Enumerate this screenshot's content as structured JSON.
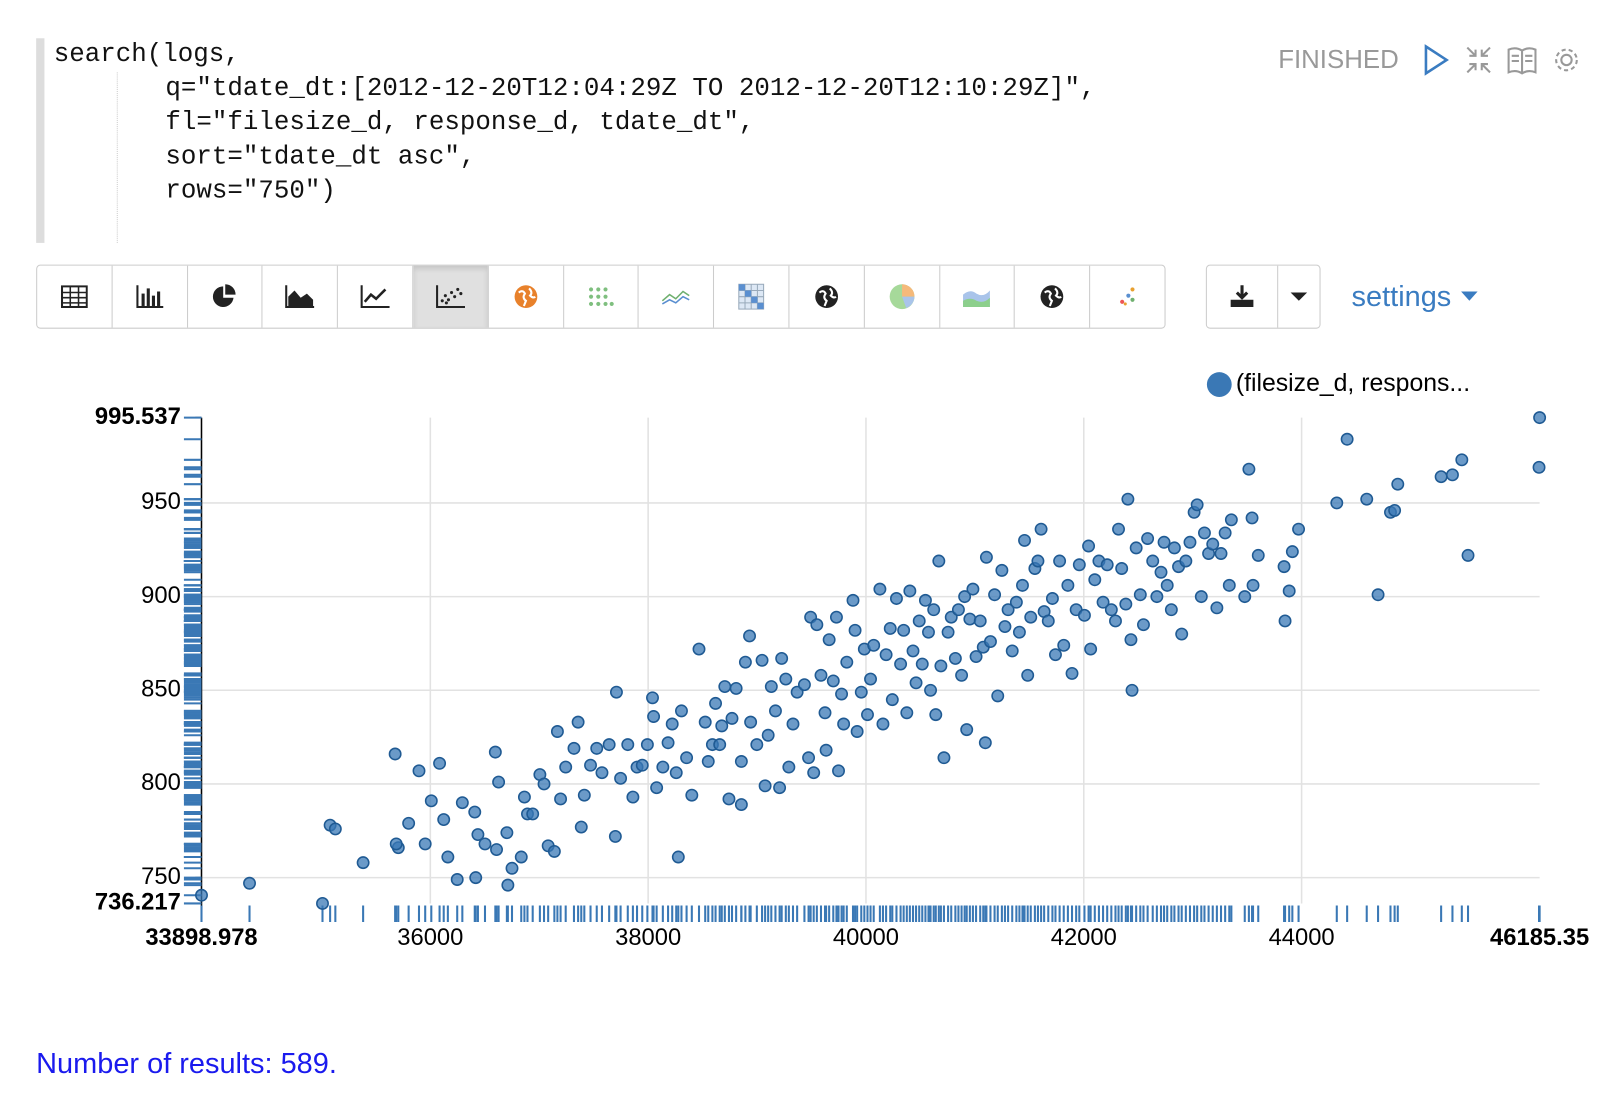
{
  "editor": {
    "lines": [
      "search(logs,",
      "q=\"tdate_dt:[2012-12-20T12:04:29Z TO 2012-12-20T12:10:29Z]\",",
      "fl=\"filesize_d, response_d, tdate_dt\",",
      "sort=\"tdate_dt asc\",",
      "rows=\"750\")"
    ]
  },
  "status": "FINISHED",
  "settings_label": "settings",
  "footer": {
    "results": "Number of results: 589."
  },
  "chart_data": {
    "type": "scatter",
    "xlim": [
      33898.978,
      46185.35
    ],
    "ylim": [
      736.217,
      995.537
    ],
    "xticks": [
      33898.978,
      36000,
      38000,
      40000,
      42000,
      44000,
      46185.35
    ],
    "yticks": [
      736.217,
      750,
      800,
      850,
      900,
      950,
      995.537
    ],
    "grid": true,
    "rug": true,
    "legend": "top-right",
    "series": [
      {
        "name": "(filesize_d, respons...",
        "color": "#3a78b5",
        "x": [
          33898.978,
          34340,
          35010,
          35080,
          35128,
          35383,
          35677,
          35706,
          35687,
          35801,
          35896,
          35953,
          36009,
          36085,
          36123,
          36161,
          36247,
          36294,
          36408,
          36437,
          36417,
          36502,
          36597,
          36627,
          36608,
          36703,
          36712,
          36750,
          36835,
          36864,
          36892,
          36940,
          37006,
          37044,
          37082,
          37139,
          37167,
          37196,
          37243,
          37319,
          37357,
          37386,
          37414,
          37471,
          37528,
          37576,
          37642,
          37699,
          37709,
          37747,
          37813,
          37860,
          37898,
          37946,
          37993,
          38040,
          38050,
          38078,
          38135,
          38183,
          38221,
          38258,
          38277,
          38306,
          38353,
          38401,
          38467,
          38524,
          38552,
          38590,
          38619,
          38657,
          38676,
          38704,
          38742,
          38770,
          38808,
          38856,
          38856,
          38893,
          38931,
          38941,
          38998,
          39046,
          39074,
          39102,
          39131,
          39169,
          39207,
          39226,
          39264,
          39292,
          39330,
          39368,
          39435,
          39473,
          39492,
          39520,
          39549,
          39587,
          39624,
          39634,
          39662,
          39700,
          39729,
          39748,
          39776,
          39795,
          39824,
          39881,
          39900,
          39919,
          39957,
          39985,
          40014,
          40042,
          40071,
          40128,
          40156,
          40185,
          40223,
          40242,
          40280,
          40318,
          40346,
          40375,
          40403,
          40432,
          40460,
          40489,
          40517,
          40546,
          40574,
          40593,
          40622,
          40641,
          40669,
          40688,
          40716,
          40754,
          40783,
          40821,
          40849,
          40878,
          40906,
          40925,
          40954,
          40982,
          41011,
          41049,
          41077,
          41096,
          41106,
          41143,
          41181,
          41210,
          41248,
          41276,
          41305,
          41343,
          41381,
          41409,
          41437,
          41456,
          41485,
          41513,
          41551,
          41579,
          41608,
          41636,
          41674,
          41712,
          41740,
          41778,
          41816,
          41854,
          41892,
          41930,
          41959,
          42006,
          42044,
          42063,
          42101,
          42139,
          42177,
          42215,
          42253,
          42291,
          42319,
          42348,
          42386,
          42405,
          42433,
          42443,
          42481,
          42519,
          42548,
          42586,
          42633,
          42671,
          42709,
          42737,
          42766,
          42804,
          42832,
          42870,
          42899,
          42937,
          42975,
          43013,
          43041,
          43079,
          43108,
          43146,
          43184,
          43222,
          43260,
          43298,
          43336,
          43355,
          43478,
          43516,
          43545,
          43554,
          43602,
          43839,
          43848,
          43886,
          43915,
          43972,
          44323,
          44418,
          44598,
          44702,
          44816,
          44854,
          44883,
          45281,
          45385,
          45471,
          45528,
          46185.35,
          46180
        ],
        "values": [
          740.6,
          747,
          736.217,
          778,
          776,
          758,
          816,
          766,
          768,
          779,
          807,
          768,
          791,
          811,
          781,
          761,
          749,
          790,
          785,
          773,
          750,
          768,
          817,
          801,
          765,
          774,
          746,
          755,
          761,
          793,
          784,
          784,
          805,
          800,
          767,
          764,
          828,
          792,
          809,
          819,
          833,
          777,
          794,
          810,
          819,
          806,
          821,
          772,
          849,
          803,
          821,
          793,
          809,
          810,
          821,
          846,
          836,
          798,
          809,
          822,
          832,
          806,
          761,
          839,
          814,
          794,
          872,
          833,
          812,
          821,
          843,
          821,
          831,
          852,
          792,
          835,
          851,
          789,
          812,
          865,
          879,
          833,
          821,
          866,
          799,
          826,
          852,
          839,
          798,
          867,
          856,
          809,
          832,
          849,
          853,
          814,
          889,
          806,
          885,
          858,
          838,
          818,
          877,
          855,
          889,
          807,
          848,
          832,
          865,
          898,
          882,
          828,
          849,
          872,
          837,
          856,
          874,
          904,
          832,
          869,
          883,
          845,
          899,
          864,
          882,
          838,
          903,
          871,
          854,
          887,
          864,
          898,
          881,
          850,
          893,
          837,
          919,
          863,
          814,
          881,
          889,
          867,
          893,
          858,
          900,
          829,
          888,
          904,
          868,
          887,
          873,
          822,
          921,
          876,
          901,
          847,
          914,
          884,
          893,
          871,
          897,
          881,
          906,
          930,
          858,
          889,
          915,
          919,
          936,
          892,
          887,
          899,
          869,
          919,
          874,
          906,
          859,
          893,
          917,
          890,
          927,
          872,
          909,
          919,
          897,
          917,
          893,
          887,
          936,
          915,
          896,
          952,
          877,
          850,
          926,
          901,
          885,
          931,
          919,
          900,
          913,
          929,
          906,
          893,
          926,
          916,
          880,
          919,
          929,
          945,
          949,
          900,
          934,
          923,
          928,
          894,
          923,
          934,
          906,
          941,
          900,
          968,
          942,
          906,
          922,
          916,
          887,
          903,
          924,
          936,
          950,
          984,
          952,
          901,
          945,
          946,
          960,
          964,
          965,
          973,
          922,
          995.537,
          969
        ]
      }
    ]
  }
}
